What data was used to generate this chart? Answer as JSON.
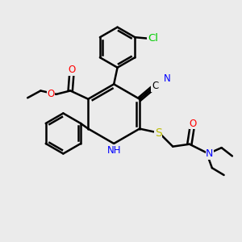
{
  "bg_color": "#ebebeb",
  "bond_color": "#000000",
  "bond_lw": 1.8,
  "atom_colors": {
    "O": "#ff0000",
    "N": "#0000ff",
    "S": "#bbbb00",
    "Cl": "#00cc00",
    "C": "#000000"
  },
  "font_size": 8.5
}
